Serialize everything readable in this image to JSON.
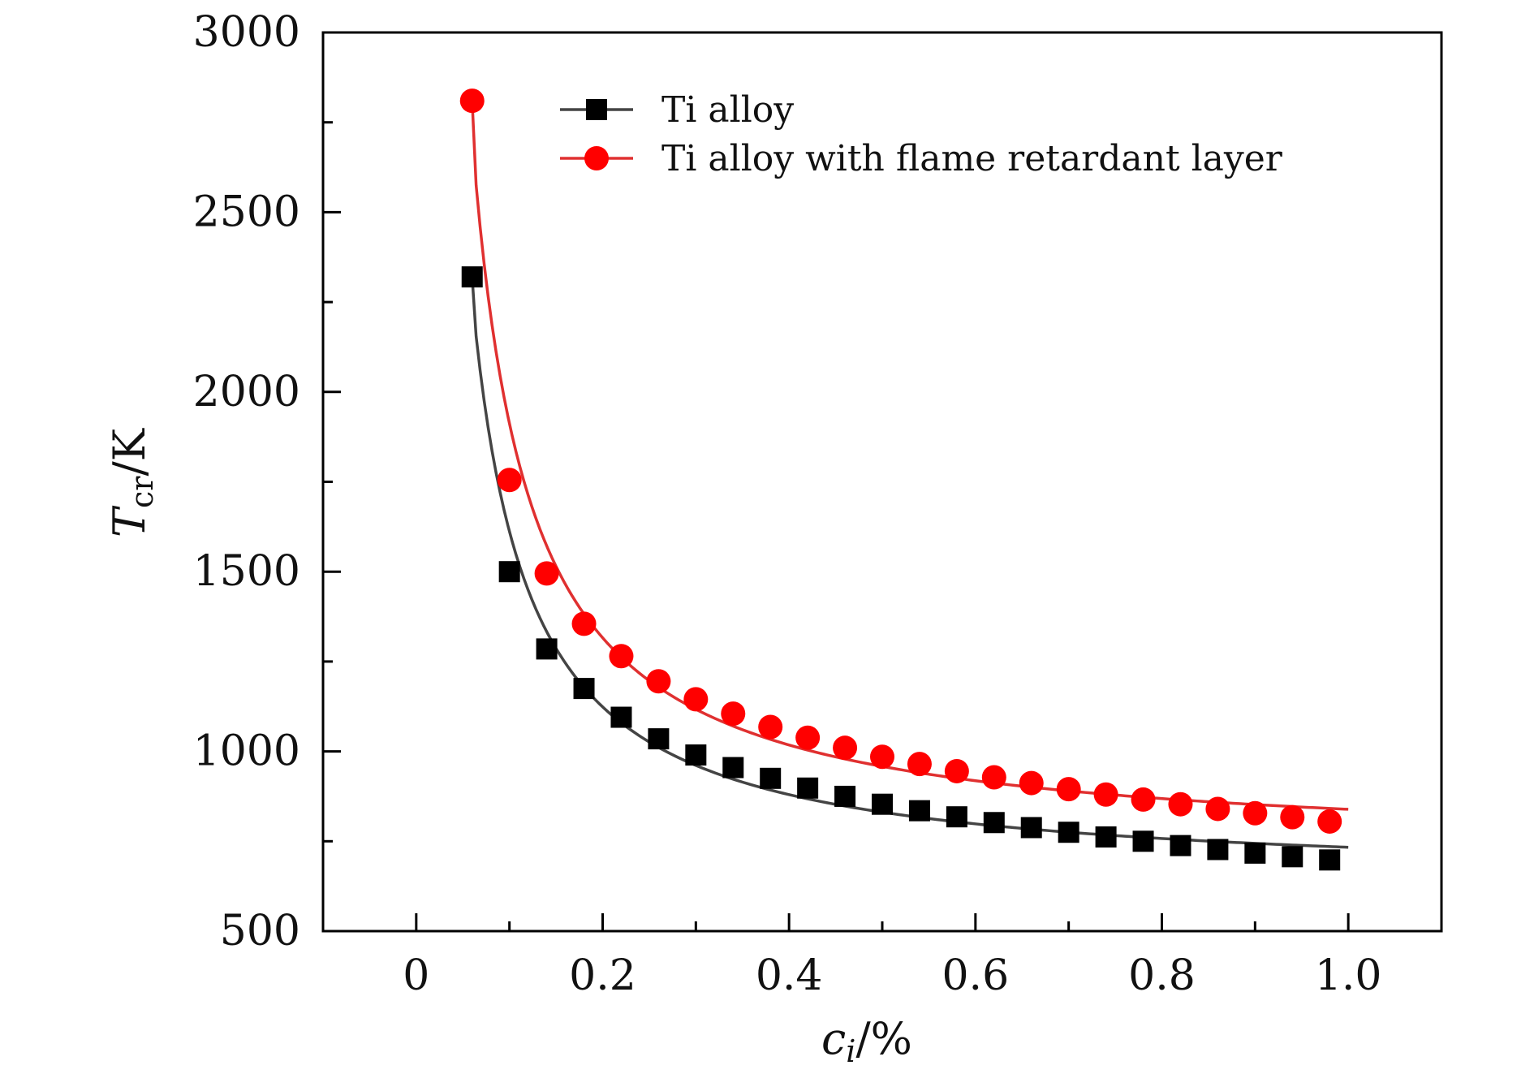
{
  "chart_data": {
    "type": "line",
    "title": "",
    "xlabel": {
      "main": "c",
      "sub": "i",
      "suffix": "/%"
    },
    "ylabel": {
      "main": "T",
      "sub": "cr",
      "suffix": "/K"
    },
    "xlim": [
      -0.1,
      1.1
    ],
    "ylim": [
      500,
      3000
    ],
    "xticks": [
      0,
      0.2,
      0.4,
      0.6,
      0.8,
      1.0
    ],
    "xtick_labels": [
      "0",
      "0.2",
      "0.4",
      "0.6",
      "0.8",
      "1.0"
    ],
    "yticks": [
      500,
      1000,
      1500,
      2000,
      2500,
      3000
    ],
    "ytick_labels": [
      "500",
      "1000",
      "1500",
      "2000",
      "2500",
      "3000"
    ],
    "grid": false,
    "legend_position": "top-right",
    "x": [
      0.06,
      0.1,
      0.14,
      0.18,
      0.22,
      0.26,
      0.3,
      0.34,
      0.38,
      0.42,
      0.46,
      0.5,
      0.54,
      0.58,
      0.62,
      0.66,
      0.7,
      0.74,
      0.78,
      0.82,
      0.86,
      0.9,
      0.94,
      0.98
    ],
    "series": [
      {
        "name": "Ti alloy",
        "marker": "square",
        "color": "#000000",
        "line_color": "#444444",
        "values": [
          2320,
          1500,
          1285,
          1175,
          1095,
          1035,
          990,
          955,
          925,
          898,
          875,
          853,
          835,
          818,
          802,
          788,
          775,
          762,
          750,
          738,
          727,
          717,
          707,
          698
        ]
      },
      {
        "name": "Ti alloy with flame retardant layer",
        "marker": "circle",
        "color": "#ff0000",
        "line_color": "#e03030",
        "values": [
          2810,
          1755,
          1495,
          1355,
          1265,
          1195,
          1145,
          1105,
          1068,
          1038,
          1010,
          985,
          965,
          945,
          928,
          912,
          895,
          880,
          866,
          853,
          840,
          828,
          817,
          805
        ]
      }
    ]
  }
}
